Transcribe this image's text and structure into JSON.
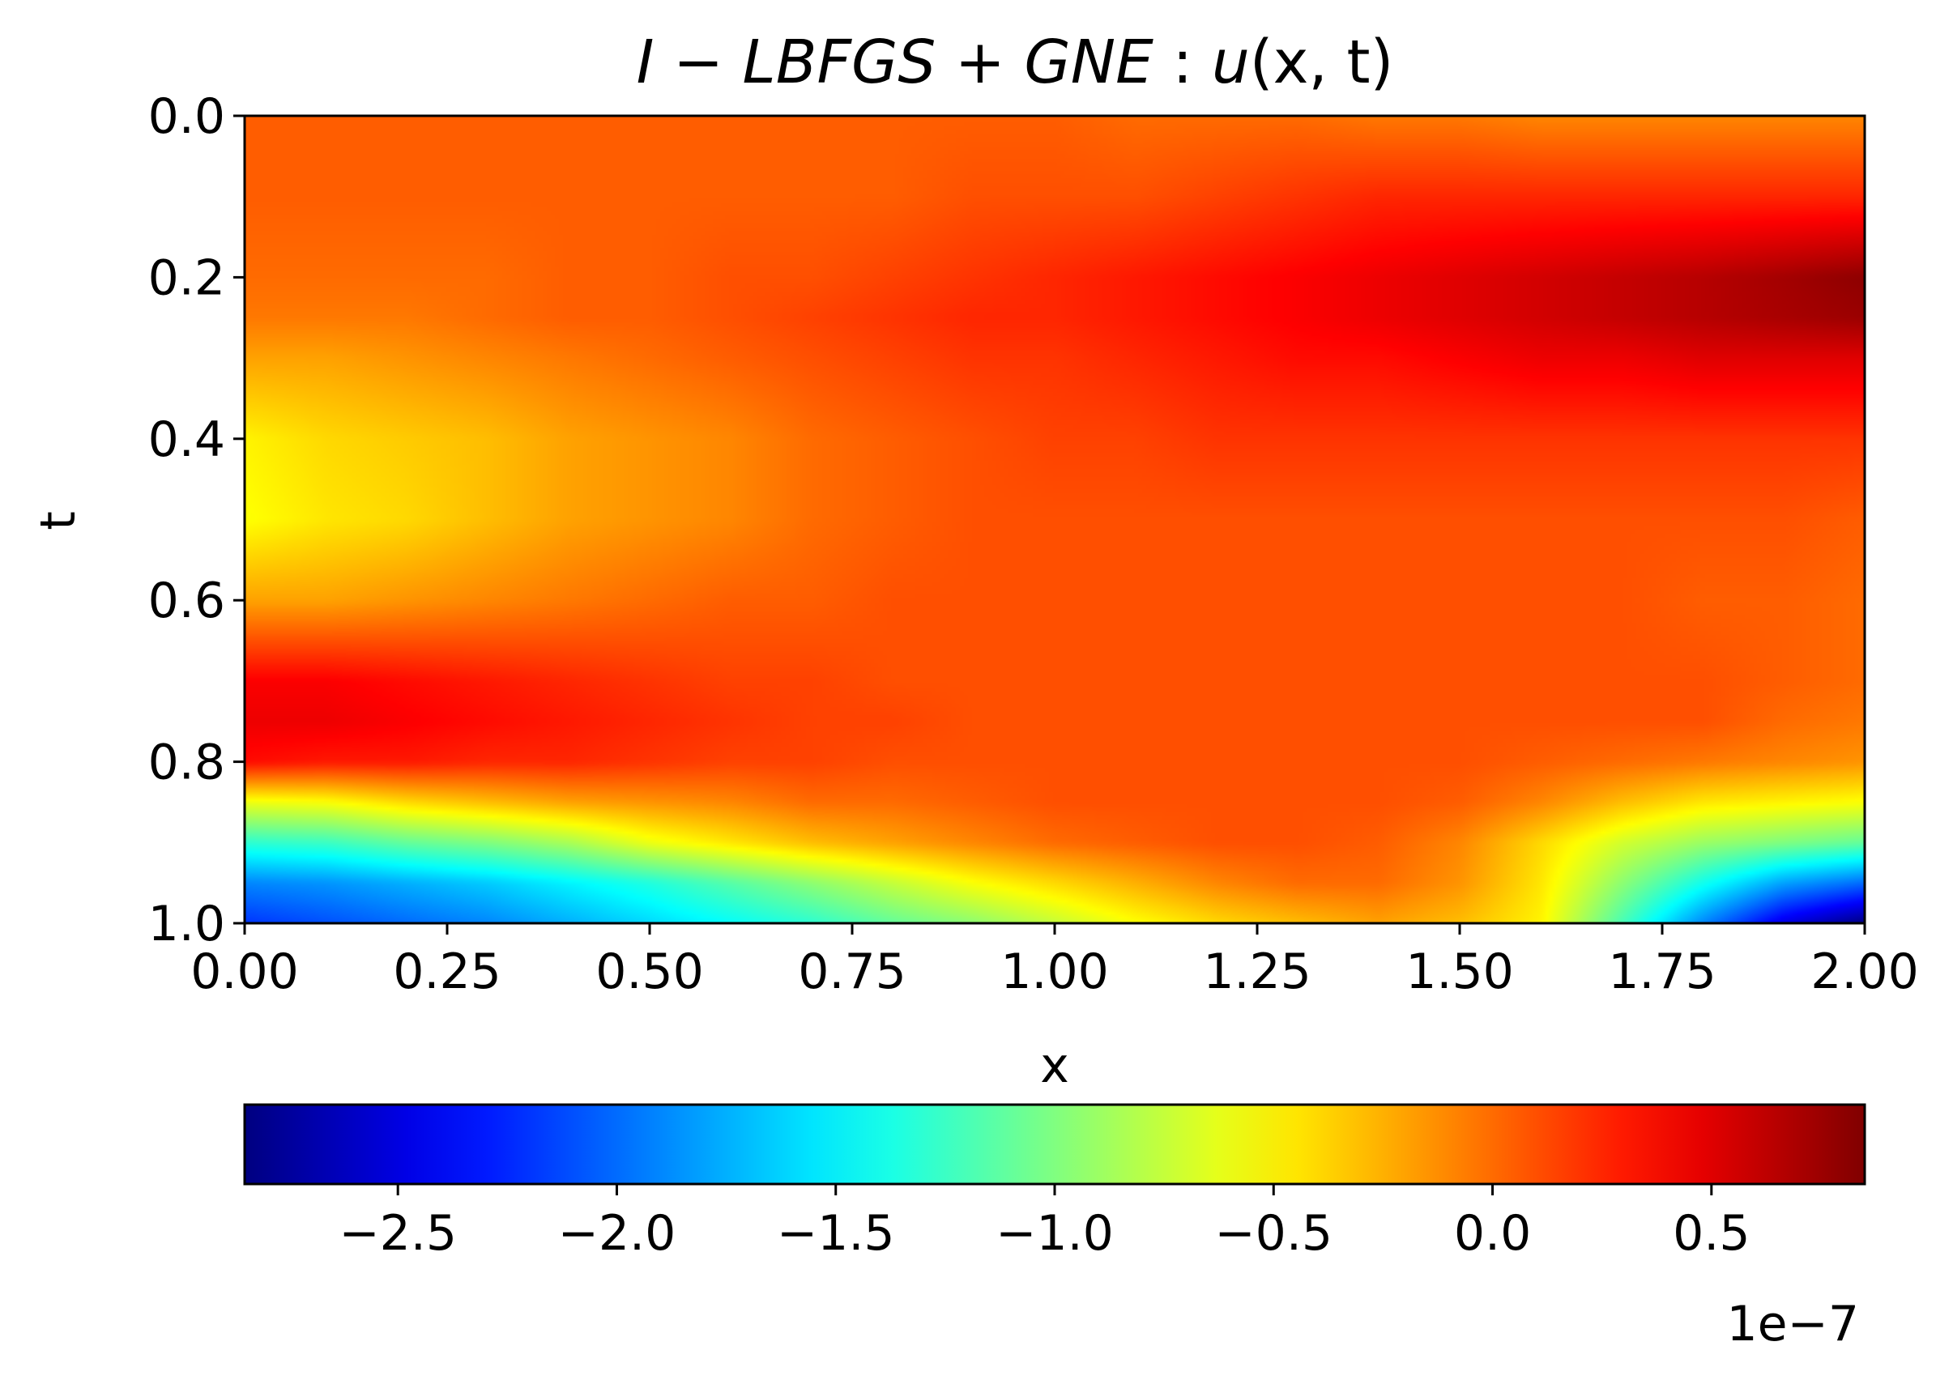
{
  "chart_data": [
    {
      "type": "heatmap",
      "title": "I − LBFGS + GNE : u(x, t)",
      "title_parts": {
        "method": "I − LBFGS + GNE",
        "separator": " : ",
        "func": "u",
        "args": "(x, t)"
      },
      "xlabel": "x",
      "ylabel": "t",
      "xlim": [
        0.0,
        2.0
      ],
      "ylim": [
        1.0,
        0.0
      ],
      "y_axis_inverted": true,
      "grid": false,
      "colormap": "jet",
      "x_ticks": [
        0.0,
        0.25,
        0.5,
        0.75,
        1.0,
        1.25,
        1.5,
        1.75,
        2.0
      ],
      "x_tick_labels": [
        "0.00",
        "0.25",
        "0.50",
        "0.75",
        "1.00",
        "1.25",
        "1.50",
        "1.75",
        "2.00"
      ],
      "y_ticks": [
        0.0,
        0.2,
        0.4,
        0.6,
        0.8,
        1.0
      ],
      "y_tick_labels": [
        "0.0",
        "0.2",
        "0.4",
        "0.6",
        "0.8",
        "1.0"
      ],
      "x_grid": [
        0.0,
        0.1,
        0.2,
        0.3,
        0.4,
        0.5,
        0.6,
        0.7,
        0.8,
        0.9,
        1.0,
        1.1,
        1.2,
        1.3,
        1.4,
        1.5,
        1.6,
        1.7,
        1.8,
        1.9,
        2.0
      ],
      "t_grid": [
        0.0,
        0.1,
        0.2,
        0.25,
        0.3,
        0.4,
        0.5,
        0.6,
        0.7,
        0.75,
        0.8,
        0.85,
        0.9,
        0.95,
        1.0
      ],
      "u_scale": 1e-07,
      "u_values": [
        [
          0.05,
          0.05,
          0.05,
          0.05,
          0.05,
          0.05,
          0.05,
          0.05,
          0.05,
          0.05,
          0.05,
          0.0,
          0.0,
          0.0,
          -0.05,
          -0.05,
          -0.1,
          -0.1,
          -0.1,
          -0.1,
          -0.1
        ],
        [
          0.05,
          0.05,
          0.05,
          0.05,
          0.05,
          0.05,
          0.05,
          0.05,
          0.05,
          0.1,
          0.1,
          0.1,
          0.15,
          0.2,
          0.25,
          0.25,
          0.25,
          0.25,
          0.25,
          0.25,
          0.25
        ],
        [
          0.0,
          0.0,
          0.0,
          0.0,
          0.05,
          0.05,
          0.1,
          0.1,
          0.15,
          0.2,
          0.25,
          0.3,
          0.35,
          0.4,
          0.45,
          0.5,
          0.55,
          0.6,
          0.65,
          0.72,
          0.8
        ],
        [
          -0.05,
          -0.05,
          -0.05,
          0.0,
          0.05,
          0.05,
          0.1,
          0.15,
          0.2,
          0.25,
          0.25,
          0.3,
          0.35,
          0.4,
          0.45,
          0.5,
          0.55,
          0.6,
          0.65,
          0.7,
          0.75
        ],
        [
          -0.2,
          -0.2,
          -0.15,
          -0.1,
          -0.05,
          0.0,
          0.05,
          0.1,
          0.15,
          0.2,
          0.2,
          0.25,
          0.3,
          0.35,
          0.35,
          0.4,
          0.45,
          0.45,
          0.5,
          0.5,
          0.5
        ],
        [
          -0.5,
          -0.4,
          -0.35,
          -0.3,
          -0.2,
          -0.15,
          -0.1,
          0.0,
          0.05,
          0.1,
          0.15,
          0.15,
          0.2,
          0.2,
          0.2,
          0.2,
          0.2,
          0.2,
          0.2,
          0.2,
          0.2
        ],
        [
          -0.55,
          -0.45,
          -0.4,
          -0.3,
          -0.2,
          -0.15,
          -0.1,
          0.0,
          0.05,
          0.1,
          0.1,
          0.1,
          0.1,
          0.1,
          0.1,
          0.1,
          0.1,
          0.1,
          0.1,
          0.1,
          0.05
        ],
        [
          -0.2,
          -0.2,
          -0.15,
          -0.1,
          -0.05,
          0.0,
          0.05,
          0.05,
          0.1,
          0.1,
          0.1,
          0.1,
          0.1,
          0.1,
          0.1,
          0.1,
          0.1,
          0.1,
          0.05,
          0.05,
          0.0
        ],
        [
          0.4,
          0.4,
          0.35,
          0.3,
          0.25,
          0.2,
          0.15,
          0.15,
          0.1,
          0.1,
          0.1,
          0.1,
          0.1,
          0.1,
          0.1,
          0.1,
          0.1,
          0.1,
          0.1,
          0.05,
          0.0
        ],
        [
          0.45,
          0.45,
          0.4,
          0.35,
          0.3,
          0.25,
          0.2,
          0.15,
          0.15,
          0.1,
          0.1,
          0.1,
          0.1,
          0.1,
          0.1,
          0.1,
          0.1,
          0.1,
          0.1,
          0.0,
          -0.05
        ],
        [
          0.35,
          0.3,
          0.3,
          0.25,
          0.25,
          0.2,
          0.15,
          0.15,
          0.1,
          0.1,
          0.1,
          0.1,
          0.1,
          0.1,
          0.1,
          0.1,
          0.05,
          0.0,
          -0.05,
          -0.1,
          -0.15
        ],
        [
          -0.6,
          -0.55,
          -0.4,
          -0.3,
          -0.2,
          -0.15,
          -0.1,
          0.0,
          0.0,
          0.05,
          0.1,
          0.1,
          0.1,
          0.1,
          0.1,
          0.05,
          -0.1,
          -0.3,
          -0.45,
          -0.5,
          -0.55
        ],
        [
          -1.3,
          -1.25,
          -1.1,
          -1.0,
          -0.85,
          -0.6,
          -0.45,
          -0.3,
          -0.2,
          -0.1,
          0.0,
          0.05,
          0.1,
          0.1,
          0.05,
          -0.1,
          -0.4,
          -0.7,
          -0.9,
          -1.0,
          -1.1
        ],
        [
          -1.9,
          -1.85,
          -1.75,
          -1.65,
          -1.5,
          -1.35,
          -1.15,
          -0.95,
          -0.75,
          -0.55,
          -0.4,
          -0.25,
          -0.1,
          0.0,
          0.0,
          -0.15,
          -0.45,
          -0.95,
          -1.4,
          -1.8,
          -2.0
        ],
        [
          -2.2,
          -2.1,
          -2.0,
          -1.9,
          -1.75,
          -1.6,
          -1.45,
          -1.3,
          -1.1,
          -0.95,
          -0.75,
          -0.55,
          -0.4,
          -0.3,
          -0.2,
          -0.3,
          -0.5,
          -1.2,
          -1.9,
          -2.5,
          -2.85
        ]
      ],
      "colorbar": {
        "orientation": "horizontal",
        "vmin": -2.85,
        "vmax": 0.85,
        "ticks": [
          -2.5,
          -2.0,
          -1.5,
          -1.0,
          -0.5,
          0.0,
          0.5
        ],
        "tick_labels": [
          "−2.5",
          "−2.0",
          "−1.5",
          "−1.0",
          "−0.5",
          "0.0",
          "0.5"
        ],
        "offset_label": "1e−7"
      }
    }
  ]
}
